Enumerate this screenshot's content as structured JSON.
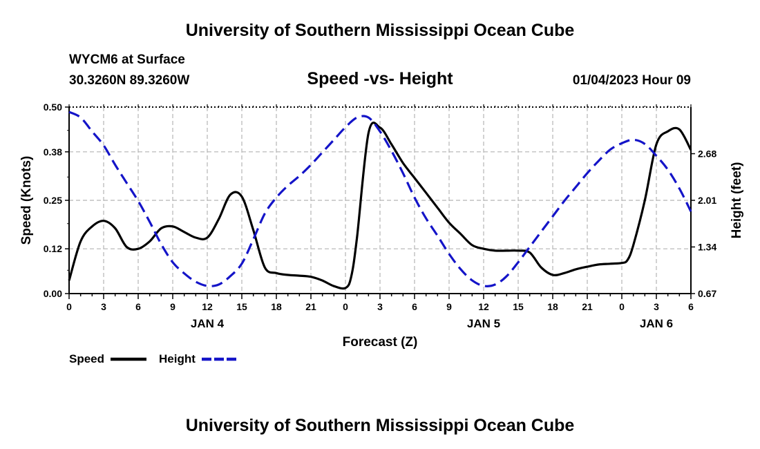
{
  "page": {
    "title_top": "University of Southern Mississippi Ocean Cube",
    "title_bottom": "University of Southern Mississippi Ocean Cube",
    "station": "WYCM6 at Surface",
    "coords": "30.3260N  89.3260W",
    "subtitle": "Speed -vs- Height",
    "datetime": "01/04/2023 Hour 09"
  },
  "chart_data": {
    "type": "line",
    "title": "Speed -vs- Height",
    "xlabel": "Forecast (Z)",
    "ylabel_left": "Speed (Knots)",
    "ylabel_right": "Height (feet)",
    "x_range": [
      0,
      54
    ],
    "x_ticks": [
      0,
      3,
      6,
      9,
      12,
      15,
      18,
      21,
      24,
      27,
      30,
      33,
      36,
      39,
      42,
      45,
      48,
      51,
      54
    ],
    "x_tick_labels": [
      "0",
      "3",
      "6",
      "9",
      "12",
      "15",
      "18",
      "21",
      "0",
      "3",
      "6",
      "9",
      "12",
      "15",
      "18",
      "21",
      "0",
      "3",
      "6"
    ],
    "day_labels": [
      {
        "x": 12,
        "label": "JAN 4"
      },
      {
        "x": 36,
        "label": "JAN 5"
      },
      {
        "x": 51,
        "label": "JAN 6"
      }
    ],
    "ylim_left": [
      0.0,
      0.5
    ],
    "yticks_left": [
      0.0,
      0.12,
      0.25,
      0.38,
      0.5
    ],
    "yticks_left_labels": [
      "0.00",
      "0.12",
      "0.25",
      "0.38",
      "0.50"
    ],
    "ylim_right": [
      0.67,
      3.35
    ],
    "yticks_right": [
      0.67,
      1.34,
      2.01,
      2.68
    ],
    "yticks_right_labels": [
      "0.67",
      "1.34",
      "2.01",
      "2.68"
    ],
    "grid": true,
    "legend_position": "bottom-left",
    "series": [
      {
        "name": "Speed",
        "axis": "left",
        "color": "#000000",
        "style": "solid",
        "x": [
          0,
          1,
          2,
          3,
          4,
          5,
          6,
          7,
          8,
          9,
          10,
          11,
          12,
          13,
          14,
          15,
          16,
          17,
          18,
          19,
          20,
          21,
          22,
          23,
          24,
          24.5,
          25,
          26,
          27,
          28,
          29,
          30,
          31,
          32,
          33,
          34,
          35,
          36,
          37,
          38,
          39,
          40,
          41,
          42,
          43,
          44,
          45,
          46,
          47,
          48,
          48.5,
          49,
          50,
          51,
          52,
          53,
          54
        ],
        "values": [
          0.035,
          0.14,
          0.18,
          0.195,
          0.175,
          0.125,
          0.12,
          0.14,
          0.175,
          0.18,
          0.165,
          0.15,
          0.15,
          0.2,
          0.265,
          0.26,
          0.17,
          0.07,
          0.055,
          0.05,
          0.048,
          0.045,
          0.035,
          0.02,
          0.015,
          0.045,
          0.15,
          0.43,
          0.445,
          0.4,
          0.35,
          0.31,
          0.27,
          0.23,
          0.19,
          0.16,
          0.13,
          0.12,
          0.115,
          0.115,
          0.115,
          0.11,
          0.07,
          0.05,
          0.055,
          0.065,
          0.072,
          0.078,
          0.08,
          0.082,
          0.09,
          0.13,
          0.25,
          0.4,
          0.435,
          0.44,
          0.385
        ]
      },
      {
        "name": "Height",
        "axis": "right",
        "color": "#1414c8",
        "style": "dashed",
        "x": [
          0,
          1,
          2,
          3,
          4,
          5,
          6,
          7,
          8,
          9,
          10,
          11,
          12,
          13,
          14,
          15,
          16,
          17,
          18,
          19,
          20,
          21,
          22,
          23,
          24,
          25,
          26,
          27,
          28,
          29,
          30,
          31,
          32,
          33,
          34,
          35,
          36,
          37,
          38,
          39,
          40,
          41,
          42,
          43,
          44,
          45,
          46,
          47,
          48,
          49,
          50,
          51,
          52,
          53,
          54
        ],
        "values": [
          3.28,
          3.2,
          3.0,
          2.8,
          2.52,
          2.26,
          2.0,
          1.7,
          1.38,
          1.12,
          0.96,
          0.84,
          0.78,
          0.8,
          0.92,
          1.1,
          1.45,
          1.82,
          2.05,
          2.22,
          2.36,
          2.52,
          2.7,
          2.88,
          3.06,
          3.2,
          3.2,
          3.0,
          2.72,
          2.4,
          2.05,
          1.75,
          1.5,
          1.24,
          1.02,
          0.86,
          0.78,
          0.8,
          0.92,
          1.12,
          1.34,
          1.56,
          1.78,
          2.0,
          2.2,
          2.4,
          2.58,
          2.74,
          2.83,
          2.88,
          2.82,
          2.65,
          2.45,
          2.18,
          1.85
        ]
      }
    ]
  }
}
